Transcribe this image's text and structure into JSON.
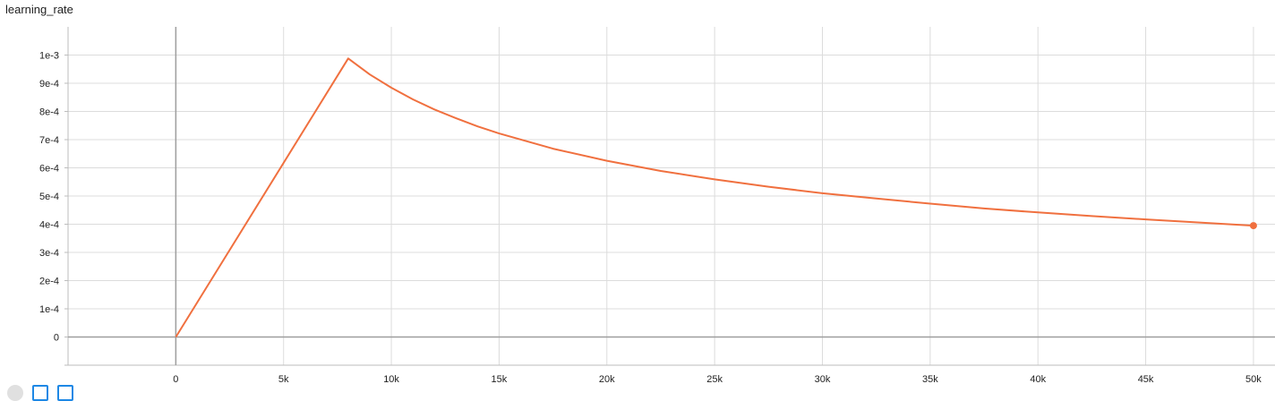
{
  "chart_data": {
    "type": "line",
    "title": "learning_rate",
    "xlabel": "",
    "ylabel": "",
    "xlim": [
      -5000,
      51000
    ],
    "ylim": [
      -0.0001,
      0.0011
    ],
    "x_ticks": [
      0,
      5000,
      10000,
      15000,
      20000,
      25000,
      30000,
      35000,
      40000,
      45000,
      50000
    ],
    "x_tick_labels": [
      "0",
      "5k",
      "10k",
      "15k",
      "20k",
      "25k",
      "30k",
      "35k",
      "40k",
      "45k",
      "50k"
    ],
    "y_ticks": [
      0,
      0.0001,
      0.0002,
      0.0003,
      0.0004,
      0.0005,
      0.0006,
      0.0007,
      0.0008,
      0.0009,
      0.001
    ],
    "y_tick_labels": [
      "0",
      "1e-4",
      "2e-4",
      "3e-4",
      "4e-4",
      "5e-4",
      "6e-4",
      "7e-4",
      "8e-4",
      "9e-4",
      "1e-3"
    ],
    "grid": true,
    "color": "#f0703f",
    "series": [
      {
        "x": [
          0,
          8000,
          9000,
          10000,
          11000,
          12000,
          13000,
          14000,
          15000,
          17500,
          20000,
          22500,
          25000,
          27500,
          30000,
          32500,
          35000,
          37500,
          40000,
          42500,
          45000,
          47500,
          50000
        ],
        "values": [
          0,
          0.000988,
          0.000931,
          0.000884,
          0.000843,
          0.000807,
          0.000776,
          0.000747,
          0.000722,
          0.000668,
          0.000625,
          0.000589,
          0.000559,
          0.000533,
          0.00051,
          0.000491,
          0.000473,
          0.000456,
          0.000442,
          0.000429,
          0.000417,
          0.000406,
          0.000395
        ]
      }
    ]
  },
  "controls": {
    "expand_icon": "expand-icon",
    "data_icon": "data-selection-icon",
    "fit_icon": "fit-domain-icon"
  }
}
